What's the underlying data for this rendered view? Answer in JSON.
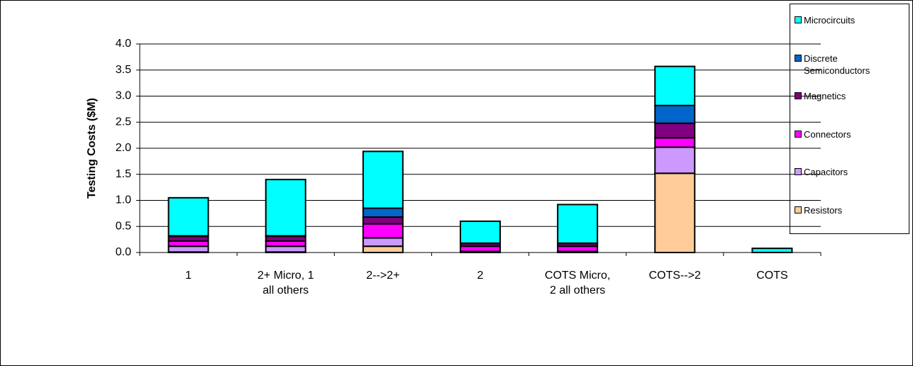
{
  "chart_data": {
    "type": "stacked_bar",
    "y_label": "Testing Costs ($M)",
    "categories": [
      "1",
      "2+ Micro, 1\nall others",
      "2-->2+",
      "2",
      "COTS Micro,\n2 all others",
      "COTS-->2",
      "COTS"
    ],
    "series": [
      {
        "name": "Resistors",
        "color": "#ffcc99",
        "values": [
          0.01,
          0.01,
          0.12,
          0,
          0,
          1.52,
          0
        ]
      },
      {
        "name": "Capacitors",
        "color": "#cc99ff",
        "values": [
          0.11,
          0.11,
          0.16,
          0.02,
          0.02,
          0.5,
          0
        ]
      },
      {
        "name": "Connectors",
        "color": "#ff00ff",
        "values": [
          0.1,
          0.1,
          0.27,
          0.1,
          0.1,
          0.18,
          0
        ]
      },
      {
        "name": "Magnetics",
        "color": "#800080",
        "values": [
          0.09,
          0.09,
          0.13,
          0.05,
          0.05,
          0.28,
          0
        ]
      },
      {
        "name": "Discrete Semiconductors",
        "color": "#0066cc",
        "values": [
          0.01,
          0.01,
          0.17,
          0.01,
          0.01,
          0.34,
          0
        ]
      },
      {
        "name": "Microcircuits",
        "color": "#00ffff",
        "values": [
          0.73,
          1.08,
          1.09,
          0.42,
          0.74,
          0.75,
          0.08
        ]
      }
    ],
    "ylim": [
      0,
      4
    ],
    "yticks": [
      {
        "value": 0,
        "label": "0.0"
      },
      {
        "value": 0.5,
        "label": "0.5"
      },
      {
        "value": 1,
        "label": "1.0"
      },
      {
        "value": 1.5,
        "label": "1.5"
      },
      {
        "value": 2,
        "label": "2.0"
      },
      {
        "value": 2.5,
        "label": "2.5"
      },
      {
        "value": 3,
        "label": "3.0"
      },
      {
        "value": 3.5,
        "label": "3.5"
      },
      {
        "value": 4,
        "label": "4.0"
      }
    ],
    "grid": true
  }
}
